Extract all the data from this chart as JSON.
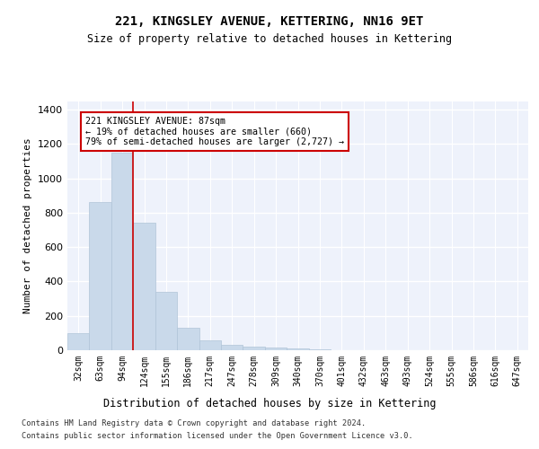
{
  "title": "221, KINGSLEY AVENUE, KETTERING, NN16 9ET",
  "subtitle": "Size of property relative to detached houses in Kettering",
  "xlabel": "Distribution of detached houses by size in Kettering",
  "ylabel": "Number of detached properties",
  "categories": [
    "32sqm",
    "63sqm",
    "94sqm",
    "124sqm",
    "155sqm",
    "186sqm",
    "217sqm",
    "247sqm",
    "278sqm",
    "309sqm",
    "340sqm",
    "370sqm",
    "401sqm",
    "432sqm",
    "463sqm",
    "493sqm",
    "524sqm",
    "555sqm",
    "586sqm",
    "616sqm",
    "647sqm"
  ],
  "values": [
    100,
    860,
    1150,
    740,
    340,
    130,
    55,
    30,
    20,
    15,
    12,
    5,
    0,
    0,
    0,
    0,
    0,
    0,
    0,
    0,
    0
  ],
  "bar_color": "#c9d9ea",
  "bar_edgecolor": "#b0c4d8",
  "background_color": "#eef2fb",
  "grid_color": "#ffffff",
  "property_line_x": 2.5,
  "property_line_color": "#cc0000",
  "annotation_text": "221 KINGSLEY AVENUE: 87sqm\n← 19% of detached houses are smaller (660)\n79% of semi-detached houses are larger (2,727) →",
  "annotation_box_color": "#cc0000",
  "ylim": [
    0,
    1450
  ],
  "yticks": [
    0,
    200,
    400,
    600,
    800,
    1000,
    1200,
    1400
  ],
  "footer_line1": "Contains HM Land Registry data © Crown copyright and database right 2024.",
  "footer_line2": "Contains public sector information licensed under the Open Government Licence v3.0."
}
